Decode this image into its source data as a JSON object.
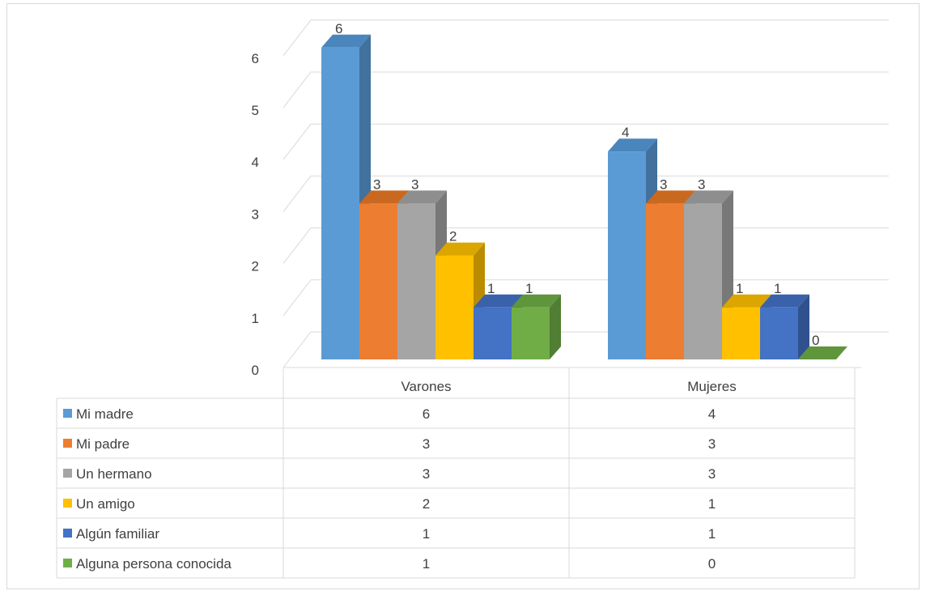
{
  "chart_data": {
    "type": "bar",
    "subtype": "3d-clustered-column-with-data-table",
    "title": "",
    "xlabel": "",
    "ylabel": "",
    "ylim": [
      0,
      6
    ],
    "yticks": [
      "0",
      "1",
      "2",
      "3",
      "4",
      "5",
      "6"
    ],
    "grid": true,
    "legend": "data-table",
    "categories": [
      "Varones",
      "Mujeres"
    ],
    "series": [
      {
        "name": "Mi madre",
        "values": [
          6,
          4
        ],
        "color": "#5B9BD5",
        "side": "#41719C",
        "top": "#4A86BD"
      },
      {
        "name": "Mi padre",
        "values": [
          3,
          3
        ],
        "color": "#ED7D31",
        "side": "#AE5A21",
        "top": "#C9681F"
      },
      {
        "name": "Un hermano",
        "values": [
          3,
          3
        ],
        "color": "#A5A5A5",
        "side": "#787878",
        "top": "#8E8E8E"
      },
      {
        "name": "Un amigo",
        "values": [
          2,
          1
        ],
        "color": "#FFC000",
        "side": "#BC8C00",
        "top": "#DCA600"
      },
      {
        "name": "Algún familiar",
        "values": [
          1,
          1
        ],
        "color": "#4472C4",
        "side": "#2F528F",
        "top": "#3A62AB"
      },
      {
        "name": "Alguna persona conocida",
        "values": [
          1,
          0
        ],
        "color": "#70AD47",
        "side": "#507E32",
        "top": "#5F953B"
      }
    ]
  }
}
